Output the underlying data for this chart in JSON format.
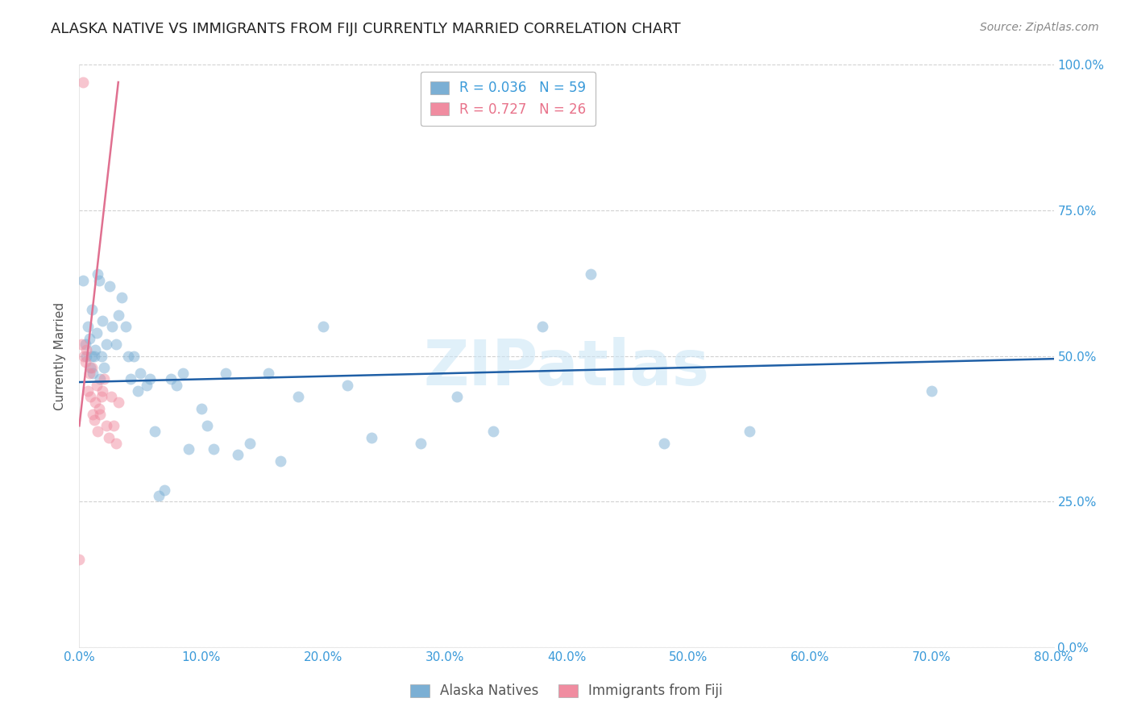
{
  "title": "ALASKA NATIVE VS IMMIGRANTS FROM FIJI CURRENTLY MARRIED CORRELATION CHART",
  "source": "Source: ZipAtlas.com",
  "ylabel": "Currently Married",
  "xlim": [
    0,
    0.8
  ],
  "ylim": [
    0,
    1.0
  ],
  "legend_entries": [
    {
      "label": "R = 0.036   N = 59",
      "color_text": "#3a9ad9"
    },
    {
      "label": "R = 0.727   N = 26",
      "color_text": "#e8728a"
    }
  ],
  "watermark": "ZIPatlas",
  "blue_scatter_x": [
    0.003,
    0.005,
    0.006,
    0.007,
    0.008,
    0.009,
    0.01,
    0.01,
    0.011,
    0.012,
    0.013,
    0.014,
    0.015,
    0.016,
    0.017,
    0.018,
    0.019,
    0.02,
    0.022,
    0.025,
    0.027,
    0.03,
    0.032,
    0.035,
    0.038,
    0.04,
    0.042,
    0.045,
    0.048,
    0.05,
    0.055,
    0.058,
    0.062,
    0.065,
    0.07,
    0.075,
    0.08,
    0.085,
    0.09,
    0.1,
    0.105,
    0.11,
    0.12,
    0.13,
    0.14,
    0.155,
    0.165,
    0.18,
    0.2,
    0.22,
    0.24,
    0.28,
    0.31,
    0.34,
    0.38,
    0.42,
    0.48,
    0.55,
    0.7
  ],
  "blue_scatter_y": [
    0.63,
    0.52,
    0.5,
    0.55,
    0.53,
    0.48,
    0.58,
    0.5,
    0.47,
    0.5,
    0.51,
    0.54,
    0.64,
    0.63,
    0.46,
    0.5,
    0.56,
    0.48,
    0.52,
    0.62,
    0.55,
    0.52,
    0.57,
    0.6,
    0.55,
    0.5,
    0.46,
    0.5,
    0.44,
    0.47,
    0.45,
    0.46,
    0.37,
    0.26,
    0.27,
    0.46,
    0.45,
    0.47,
    0.34,
    0.41,
    0.38,
    0.34,
    0.47,
    0.33,
    0.35,
    0.47,
    0.32,
    0.43,
    0.55,
    0.45,
    0.36,
    0.35,
    0.43,
    0.37,
    0.55,
    0.64,
    0.35,
    0.37,
    0.44
  ],
  "pink_scatter_x": [
    0.0,
    0.002,
    0.003,
    0.004,
    0.005,
    0.006,
    0.007,
    0.008,
    0.009,
    0.01,
    0.011,
    0.012,
    0.013,
    0.014,
    0.015,
    0.016,
    0.017,
    0.018,
    0.019,
    0.02,
    0.022,
    0.024,
    0.026,
    0.028,
    0.03,
    0.032
  ],
  "pink_scatter_y": [
    0.15,
    0.52,
    0.97,
    0.5,
    0.49,
    0.51,
    0.44,
    0.47,
    0.43,
    0.48,
    0.4,
    0.39,
    0.42,
    0.45,
    0.37,
    0.41,
    0.4,
    0.43,
    0.44,
    0.46,
    0.38,
    0.36,
    0.43,
    0.38,
    0.35,
    0.42
  ],
  "blue_line_x": [
    0.0,
    0.8
  ],
  "blue_line_y": [
    0.455,
    0.495
  ],
  "pink_line_x": [
    0.0,
    0.032
  ],
  "pink_line_y": [
    0.38,
    0.97
  ],
  "blue_color": "#7bafd4",
  "pink_color": "#f08ca0",
  "blue_line_color": "#1f5fa6",
  "pink_line_color": "#e07090",
  "grid_color": "#cccccc",
  "background_color": "#ffffff",
  "title_fontsize": 13,
  "source_fontsize": 10,
  "legend_fontsize": 12,
  "axis_label_fontsize": 11,
  "tick_fontsize": 11,
  "scatter_size": 100,
  "scatter_alpha": 0.5,
  "line_width": 1.8
}
